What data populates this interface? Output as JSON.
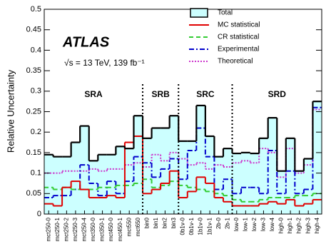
{
  "chart_data": {
    "type": "step",
    "y_label": "Relative Uncertainty",
    "experiment": "ATLAS",
    "energy_label": "√s = 13 TeV, 139 fb⁻¹",
    "categories": [
      "mct250-0",
      "mct250-1",
      "mct250-2",
      "mct250-3",
      "mct250-4",
      "mct350-0",
      "mct350-1",
      "mct450-0",
      "mct450-1",
      "mct550",
      "mct650",
      "bin0",
      "bin1",
      "bin2",
      "bin3",
      "0b1v-0",
      "0b1v-1",
      "1b1v-0",
      "1b1v-1",
      "2b-0",
      "2b-1",
      "low-0",
      "low-1",
      "low-2",
      "low-3",
      "low-4",
      "high-0",
      "high-1",
      "high-2",
      "high-3",
      "high-4"
    ],
    "regions": [
      {
        "label": "SRA",
        "start": "mct250-0",
        "end": "mct650"
      },
      {
        "label": "SRB",
        "start": "bin0",
        "end": "bin3"
      },
      {
        "label": "SRC",
        "start": "0b1v-0",
        "end": "2b-1"
      },
      {
        "label": "SRD",
        "start": "low-0",
        "end": "high-4"
      }
    ],
    "ylim": [
      0,
      0.5
    ],
    "yticks": [
      0,
      0.05,
      0.1,
      0.15,
      0.2,
      0.25,
      0.3,
      0.35,
      0.4,
      0.45,
      0.5
    ],
    "legend": "upper right",
    "series": [
      {
        "name": "Total",
        "color": "#000000",
        "fill": "#ccffff",
        "style": "solid",
        "values": [
          0.145,
          0.14,
          0.14,
          0.175,
          0.215,
          0.13,
          0.145,
          0.145,
          0.165,
          0.16,
          0.24,
          0.185,
          0.21,
          0.21,
          0.24,
          0.178,
          0.178,
          0.265,
          0.19,
          0.14,
          0.16,
          0.148,
          0.15,
          0.148,
          0.185,
          0.235,
          0.105,
          0.185,
          0.105,
          0.135,
          0.275
        ]
      },
      {
        "name": "MC statistical",
        "color": "#e00000",
        "style": "solid",
        "values": [
          0.025,
          0.02,
          0.065,
          0.08,
          0.06,
          0.04,
          0.04,
          0.045,
          0.04,
          0.175,
          0.19,
          0.05,
          0.06,
          0.075,
          0.105,
          0.04,
          0.055,
          0.09,
          0.075,
          0.04,
          0.03,
          0.02,
          0.02,
          0.02,
          0.025,
          0.03,
          0.025,
          0.035,
          0.02,
          0.025,
          0.035
        ]
      },
      {
        "name": "CR statistical",
        "color": "#33cc33",
        "style": "dashed",
        "values": [
          0.065,
          0.06,
          0.065,
          0.06,
          0.06,
          0.06,
          0.065,
          0.065,
          0.07,
          0.07,
          0.075,
          0.085,
          0.065,
          0.07,
          0.08,
          0.07,
          0.065,
          0.06,
          0.055,
          0.05,
          0.045,
          0.035,
          0.03,
          0.03,
          0.035,
          0.04,
          0.04,
          0.04,
          0.045,
          0.045,
          0.05
        ]
      },
      {
        "name": "Experimental",
        "color": "#0000cc",
        "style": "dashdot",
        "values": [
          0.04,
          0.045,
          0.045,
          0.06,
          0.12,
          0.075,
          0.045,
          0.08,
          0.05,
          0.08,
          0.14,
          0.125,
          0.09,
          0.11,
          0.135,
          0.085,
          0.155,
          0.21,
          0.14,
          0.06,
          0.085,
          0.05,
          0.065,
          0.065,
          0.05,
          0.155,
          0.05,
          0.105,
          0.05,
          0.06,
          0.26
        ]
      },
      {
        "name": "Theoretical",
        "color": "#cc33cc",
        "style": "dotted",
        "values": [
          0.1,
          0.1,
          0.105,
          0.105,
          0.105,
          0.11,
          0.105,
          0.11,
          0.11,
          0.12,
          0.125,
          0.115,
          0.145,
          0.13,
          0.15,
          0.135,
          0.12,
          0.125,
          0.11,
          0.12,
          0.115,
          0.125,
          0.13,
          0.125,
          0.16,
          0.15,
          0.09,
          0.16,
          0.1,
          0.12,
          0.255
        ]
      }
    ]
  }
}
